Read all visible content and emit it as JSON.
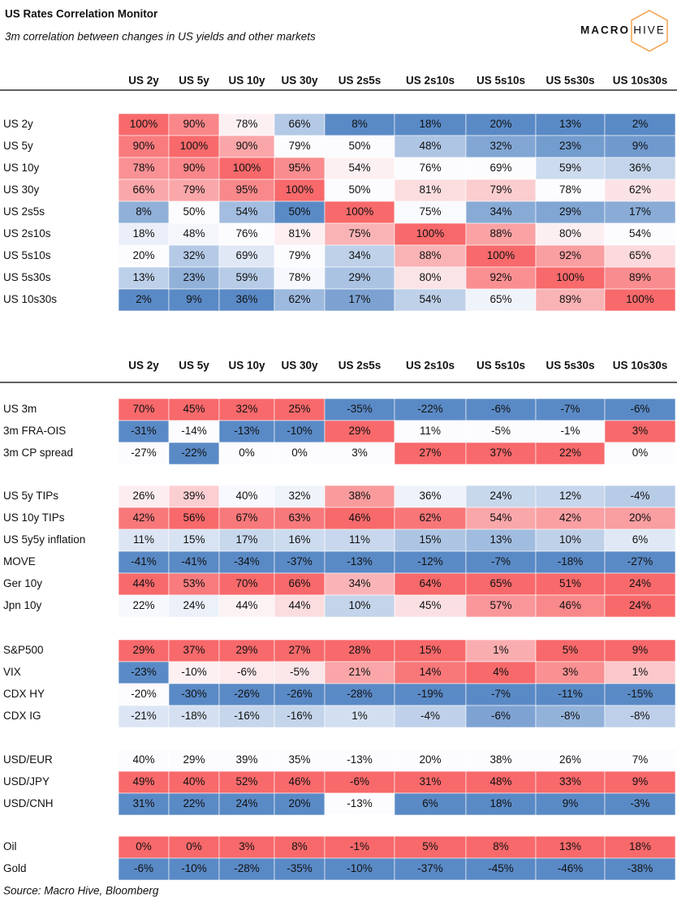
{
  "title": "US Rates Correlation Monitor",
  "subtitle": "3m correlation between changes in US yields and other markets",
  "logo": {
    "left": "MACRO",
    "right": "HIVE"
  },
  "source": "Source: Macro Hive, Bloomberg",
  "chart_data": [
    {
      "type": "heatmap",
      "columns": [
        "US 2y",
        "US 5y",
        "US 10y",
        "US 30y",
        "US 2s5s",
        "US 2s10s",
        "US 5s10s",
        "US 5s30s",
        "US 10s30s"
      ],
      "groups": [
        {
          "rows": [
            "US 2y",
            "US 5y",
            "US 10y",
            "US 30y",
            "US 2s5s",
            "US 2s10s",
            "US 5s10s",
            "US 5s30s",
            "US 10s30s"
          ],
          "values": [
            [
              100,
              90,
              78,
              66,
              8,
              18,
              20,
              13,
              2
            ],
            [
              90,
              100,
              90,
              79,
              50,
              48,
              32,
              23,
              9
            ],
            [
              78,
              90,
              100,
              95,
              54,
              76,
              69,
              59,
              36
            ],
            [
              66,
              79,
              95,
              100,
              50,
              81,
              79,
              78,
              62
            ],
            [
              8,
              50,
              54,
              50,
              100,
              75,
              34,
              29,
              17
            ],
            [
              18,
              48,
              76,
              81,
              75,
              100,
              88,
              80,
              54
            ],
            [
              20,
              32,
              69,
              79,
              34,
              88,
              100,
              92,
              65
            ],
            [
              13,
              23,
              59,
              78,
              29,
              80,
              92,
              100,
              89
            ],
            [
              2,
              9,
              36,
              62,
              17,
              54,
              65,
              89,
              100
            ]
          ],
          "value_labels": [
            [
              "100%",
              "90%",
              "78%",
              "66%",
              "8%",
              "18%",
              "20%",
              "13%",
              "2%"
            ],
            [
              "90%",
              "100%",
              "90%",
              "79%",
              "50%",
              "48%",
              "32%",
              "23%",
              "9%"
            ],
            [
              "78%",
              "90%",
              "100%",
              "95%",
              "54%",
              "76%",
              "69%",
              "59%",
              "36%"
            ],
            [
              "66%",
              "79%",
              "95%",
              "100%",
              "50%",
              "81%",
              "79%",
              "78%",
              "62%"
            ],
            [
              "8%",
              "50%",
              "54%",
              "50%",
              "100%",
              "75%",
              "34%",
              "29%",
              "17%"
            ],
            [
              "18%",
              "48%",
              "76%",
              "81%",
              "75%",
              "100%",
              "88%",
              "80%",
              "54%"
            ],
            [
              "20%",
              "32%",
              "69%",
              "79%",
              "34%",
              "88%",
              "100%",
              "92%",
              "65%"
            ],
            [
              "13%",
              "23%",
              "59%",
              "78%",
              "29%",
              "80%",
              "92%",
              "100%",
              "89%"
            ],
            [
              "2%",
              "9%",
              "36%",
              "62%",
              "17%",
              "54%",
              "65%",
              "89%",
              "100%"
            ]
          ]
        }
      ]
    },
    {
      "type": "heatmap",
      "columns": [
        "US 2y",
        "US 5y",
        "US 10y",
        "US 30y",
        "US 2s5s",
        "US 2s10s",
        "US 5s10s",
        "US 5s30s",
        "US 10s30s"
      ],
      "groups": [
        {
          "rows": [
            "US 3m",
            "3m FRA-OIS",
            "3m CP spread"
          ],
          "values": [
            [
              70,
              45,
              32,
              25,
              -35,
              -22,
              -6,
              -7,
              -6
            ],
            [
              -31,
              -14,
              -13,
              -10,
              29,
              11,
              -5,
              -1,
              3
            ],
            [
              -27,
              -22,
              0,
              0,
              3,
              27,
              37,
              22,
              0
            ]
          ],
          "value_labels": [
            [
              "70%",
              "45%",
              "32%",
              "25%",
              "-35%",
              "-22%",
              "-6%",
              "-7%",
              "-6%"
            ],
            [
              "-31%",
              "-14%",
              "-13%",
              "-10%",
              "29%",
              "11%",
              "-5%",
              "-1%",
              "3%"
            ],
            [
              "-27%",
              "-22%",
              "0%",
              "0%",
              "3%",
              "27%",
              "37%",
              "22%",
              "0%"
            ]
          ]
        },
        {
          "rows": [
            "US 5y TIPs",
            "US 10y TIPs",
            "US 5y5y inflation",
            "MOVE",
            "Ger 10y",
            "Jpn 10y"
          ],
          "values": [
            [
              26,
              39,
              40,
              32,
              38,
              36,
              24,
              12,
              -4
            ],
            [
              42,
              56,
              67,
              63,
              46,
              62,
              54,
              42,
              20
            ],
            [
              11,
              15,
              17,
              16,
              11,
              15,
              13,
              10,
              6
            ],
            [
              -41,
              -41,
              -34,
              -37,
              -13,
              -12,
              -7,
              -18,
              -27
            ],
            [
              44,
              53,
              70,
              66,
              34,
              64,
              65,
              51,
              24
            ],
            [
              22,
              24,
              44,
              44,
              10,
              45,
              57,
              46,
              24
            ]
          ],
          "value_labels": [
            [
              "26%",
              "39%",
              "40%",
              "32%",
              "38%",
              "36%",
              "24%",
              "12%",
              "-4%"
            ],
            [
              "42%",
              "56%",
              "67%",
              "63%",
              "46%",
              "62%",
              "54%",
              "42%",
              "20%"
            ],
            [
              "11%",
              "15%",
              "17%",
              "16%",
              "11%",
              "15%",
              "13%",
              "10%",
              "6%"
            ],
            [
              "-41%",
              "-41%",
              "-34%",
              "-37%",
              "-13%",
              "-12%",
              "-7%",
              "-18%",
              "-27%"
            ],
            [
              "44%",
              "53%",
              "70%",
              "66%",
              "34%",
              "64%",
              "65%",
              "51%",
              "24%"
            ],
            [
              "22%",
              "24%",
              "44%",
              "44%",
              "10%",
              "45%",
              "57%",
              "46%",
              "24%"
            ]
          ]
        },
        {
          "rows": [
            "S&P500",
            "VIX",
            "CDX HY",
            "CDX IG"
          ],
          "values": [
            [
              29,
              37,
              29,
              27,
              28,
              15,
              1,
              5,
              9
            ],
            [
              -23,
              -10,
              -6,
              -5,
              21,
              14,
              4,
              3,
              1
            ],
            [
              -20,
              -30,
              -26,
              -26,
              -28,
              -19,
              -7,
              -11,
              -15
            ],
            [
              -21,
              -18,
              -16,
              -16,
              1,
              -4,
              -6,
              -8,
              -8
            ]
          ],
          "value_labels": [
            [
              "29%",
              "37%",
              "29%",
              "27%",
              "28%",
              "15%",
              "1%",
              "5%",
              "9%"
            ],
            [
              "-23%",
              "-10%",
              "-6%",
              "-5%",
              "21%",
              "14%",
              "4%",
              "3%",
              "1%"
            ],
            [
              "-20%",
              "-30%",
              "-26%",
              "-26%",
              "-28%",
              "-19%",
              "-7%",
              "-11%",
              "-15%"
            ],
            [
              "-21%",
              "-18%",
              "-16%",
              "-16%",
              "1%",
              "-4%",
              "-6%",
              "-8%",
              "-8%"
            ]
          ]
        },
        {
          "rows": [
            "USD/EUR",
            "USD/JPY",
            "USD/CNH"
          ],
          "values": [
            [
              40,
              29,
              39,
              35,
              -13,
              20,
              38,
              26,
              7
            ],
            [
              49,
              40,
              52,
              46,
              -6,
              31,
              48,
              33,
              9
            ],
            [
              31,
              22,
              24,
              20,
              -13,
              6,
              18,
              9,
              -3
            ]
          ],
          "value_labels": [
            [
              "40%",
              "29%",
              "39%",
              "35%",
              "-13%",
              "20%",
              "38%",
              "26%",
              "7%"
            ],
            [
              "49%",
              "40%",
              "52%",
              "46%",
              "-6%",
              "31%",
              "48%",
              "33%",
              "9%"
            ],
            [
              "31%",
              "22%",
              "24%",
              "20%",
              "-13%",
              "6%",
              "18%",
              "9%",
              "-3%"
            ]
          ]
        },
        {
          "rows": [
            "Oil",
            "Gold"
          ],
          "values": [
            [
              0,
              0,
              3,
              8,
              -1,
              5,
              8,
              13,
              18
            ],
            [
              -6,
              -10,
              -28,
              -35,
              -10,
              -37,
              -45,
              -46,
              -38
            ]
          ],
          "value_labels": [
            [
              "0%",
              "0%",
              "3%",
              "8%",
              "-1%",
              "5%",
              "8%",
              "13%",
              "18%"
            ],
            [
              "-6%",
              "-10%",
              "-28%",
              "-35%",
              "-10%",
              "-37%",
              "-45%",
              "-46%",
              "-38%"
            ]
          ]
        }
      ]
    }
  ]
}
